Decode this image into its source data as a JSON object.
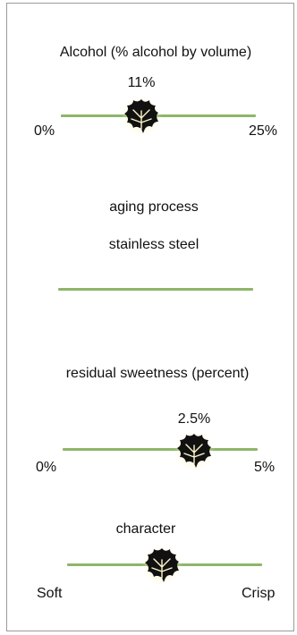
{
  "panel": {
    "alcohol": {
      "title": "Alcohol (% alcohol by volume)",
      "value_label": "11%",
      "min_label": "0%",
      "max_label": "25%",
      "value": 11,
      "min": 0,
      "max": 25
    },
    "aging": {
      "title": "aging process",
      "value_label": "stainless steel"
    },
    "sweetness": {
      "title": "residual sweetness (percent)",
      "value_label": "2.5%",
      "min_label": "0%",
      "max_label": "5%",
      "value": 2.5,
      "min": 0,
      "max": 5
    },
    "character": {
      "title": "character",
      "min_label": "Soft",
      "max_label": "Crisp",
      "level": 0.5
    }
  },
  "colors": {
    "track": "#8fb56a",
    "leaf": "#111111",
    "leaf_glow": "#fff6c8"
  },
  "icons": {
    "marker": "grape-leaf-icon"
  }
}
